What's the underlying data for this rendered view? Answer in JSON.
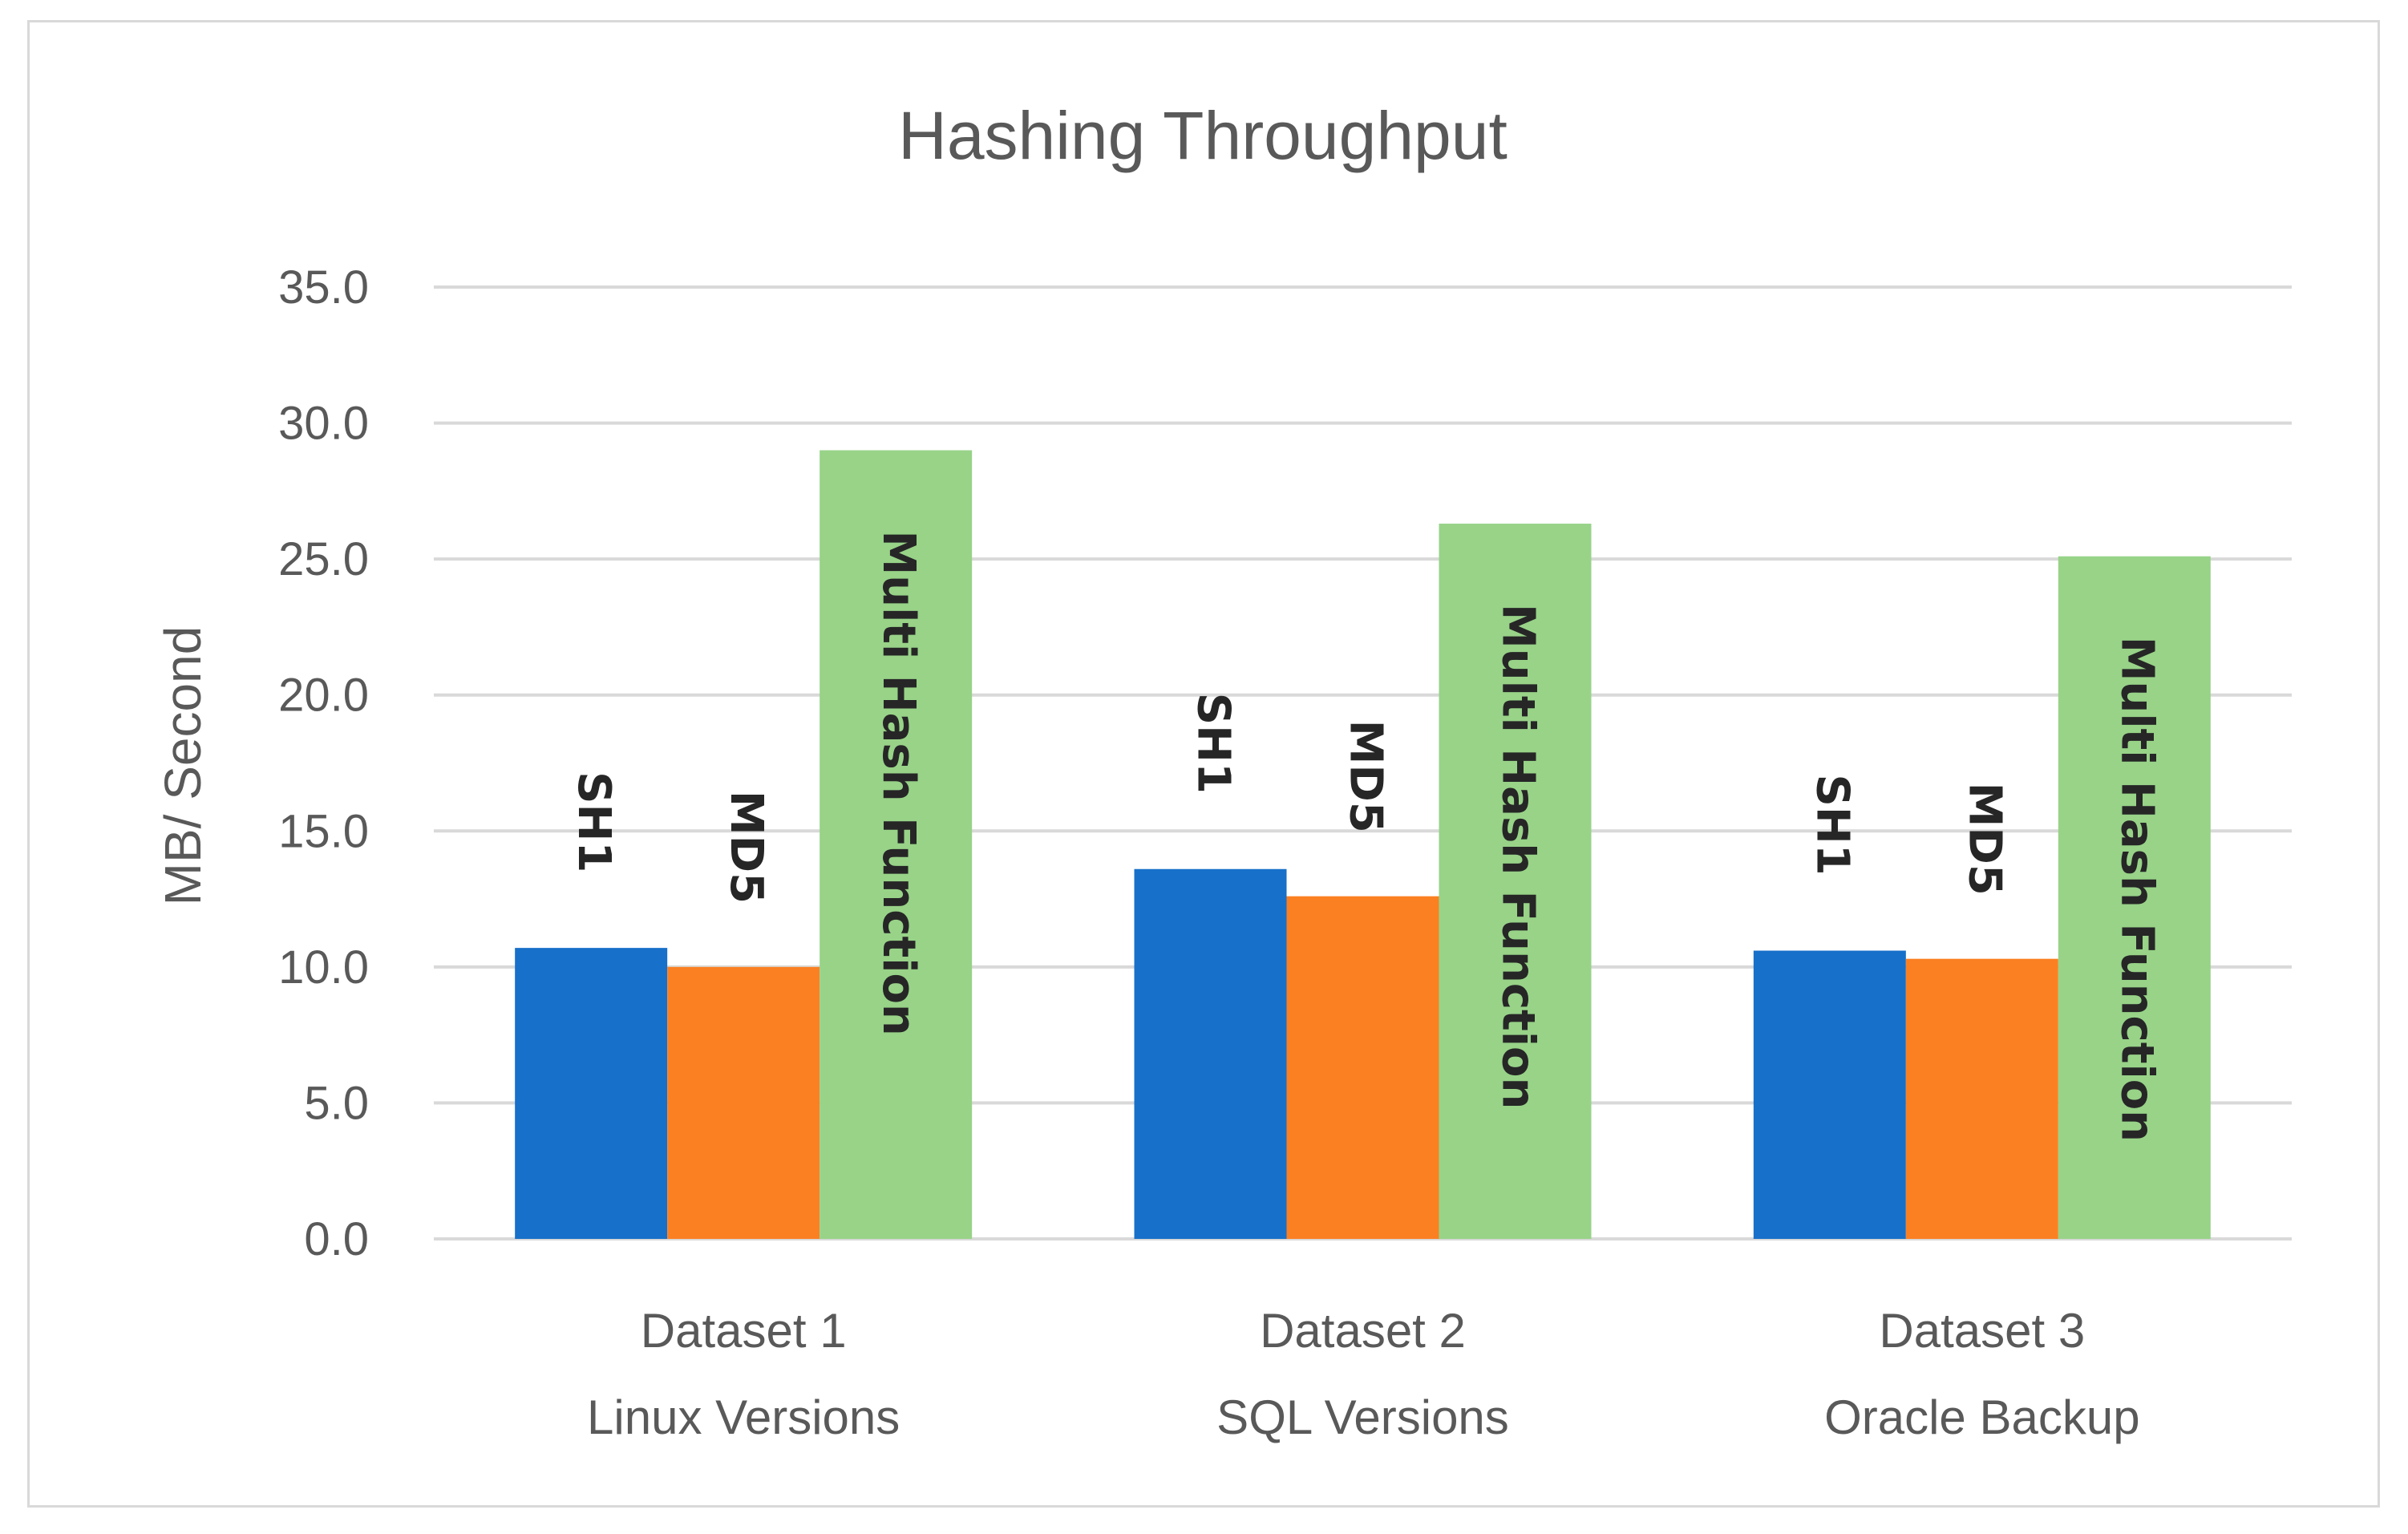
{
  "chart_data": {
    "type": "bar",
    "title": "Hashing Throughput",
    "ylabel": "MB/ Second",
    "xlabel": "",
    "ylim": [
      0,
      35
    ],
    "ytick_step": 5,
    "ytick_labels": [
      "0.0",
      "5.0",
      "10.0",
      "15.0",
      "20.0",
      "25.0",
      "30.0",
      "35.0"
    ],
    "grid": true,
    "legend": "none",
    "categories": [
      [
        "Dataset 1",
        "Linux Versions"
      ],
      [
        "Dataset 2",
        "SQL Versions"
      ],
      [
        "Dataset 3",
        "Oracle Backup"
      ]
    ],
    "series": [
      {
        "name": "SH1",
        "color": "#1770c9",
        "values": [
          10.7,
          13.6,
          10.6
        ]
      },
      {
        "name": "MD5",
        "color": "#fb8022",
        "values": [
          10.0,
          12.6,
          10.3
        ]
      },
      {
        "name": "Multi Hash Function",
        "color": "#98d388",
        "values": [
          29.0,
          26.3,
          25.1
        ]
      }
    ]
  }
}
